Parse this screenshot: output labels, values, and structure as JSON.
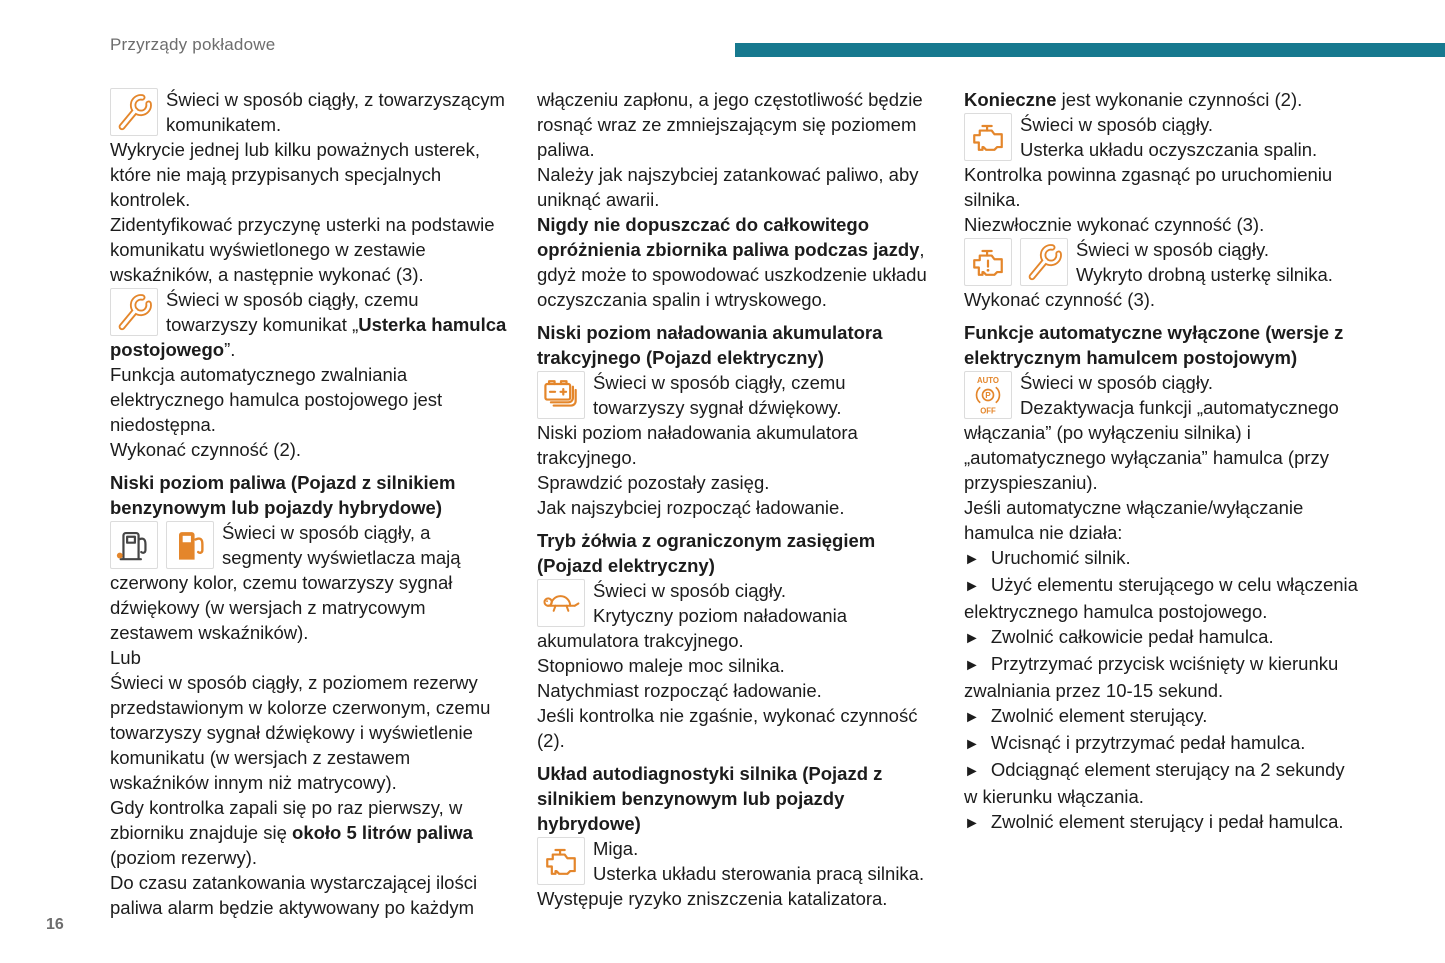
{
  "page": {
    "header": "Przyrządy pokładowe",
    "page_number": "16",
    "bullet_glyph": "►",
    "colors": {
      "accent_bar": "#17798f",
      "icon_orange": "#e4862b",
      "body_text": "#1c1c1c",
      "muted_gray": "#6d6d6d"
    }
  },
  "columns": [
    {
      "blocks": [
        {
          "type": "icon-para",
          "icons": [
            "wrench-icon"
          ],
          "runs": [
            {
              "t": "Świeci w sposób ciągły, z towarzyszącym komunikatem."
            }
          ]
        },
        {
          "type": "para",
          "runs": [
            {
              "t": "Wykrycie jednej lub kilku poważnych usterek, które nie mają przypisanych specjalnych kontrolek."
            }
          ]
        },
        {
          "type": "para",
          "runs": [
            {
              "t": "Zidentyfikować przyczynę usterki na podstawie komunikatu wyświetlonego w zestawie wskaźników, a następnie wykonać (3)."
            }
          ]
        },
        {
          "type": "icon-para",
          "icons": [
            "wrench-icon"
          ],
          "runs": [
            {
              "t": "Świeci w sposób ciągły, czemu towarzyszy komunikat „"
            },
            {
              "t": "Usterka hamulca postojowego",
              "b": true
            },
            {
              "t": "”."
            }
          ]
        },
        {
          "type": "para",
          "runs": [
            {
              "t": "Funkcja automatycznego zwalniania elektrycznego hamulca postojowego jest niedostępna."
            }
          ]
        },
        {
          "type": "para",
          "runs": [
            {
              "t": "Wykonać czynność (2)."
            }
          ]
        },
        {
          "type": "heading",
          "text": "Niski poziom paliwa (Pojazd z silnikiem benzynowym lub pojazdy hybrydowe)"
        },
        {
          "type": "icon-para",
          "icons": [
            "fuel-pump-reserve-icon",
            "fuel-pump-filled-icon"
          ],
          "runs": [
            {
              "t": "Świeci w sposób ciągły, a segmenty wyświetlacza mają czerwony kolor, czemu towarzyszy sygnał dźwiękowy (w wersjach z matrycowym zestawem wskaźników)."
            }
          ]
        },
        {
          "type": "para",
          "runs": [
            {
              "t": "Lub"
            }
          ]
        },
        {
          "type": "para",
          "runs": [
            {
              "t": "Świeci w sposób ciągły, z poziomem rezerwy przedstawionym w kolorze czerwonym, czemu towarzyszy sygnał dźwiękowy i wyświetlenie komunikatu (w wersjach z zestawem wskaźników innym niż matrycowy)."
            }
          ]
        },
        {
          "type": "para",
          "runs": [
            {
              "t": "Gdy kontrolka zapali się po raz pierwszy, w zbiorniku znajduje się "
            },
            {
              "t": "około 5 litrów paliwa",
              "b": true
            },
            {
              "t": " (poziom rezerwy)."
            }
          ]
        },
        {
          "type": "para",
          "runs": [
            {
              "t": "Do czasu zatankowania wystarczającej ilości paliwa alarm będzie aktywowany po każdym"
            }
          ]
        }
      ]
    },
    {
      "blocks": [
        {
          "type": "para",
          "runs": [
            {
              "t": "włączeniu zapłonu, a jego częstotliwość będzie rosnąć wraz ze zmniejszającym się poziomem paliwa."
            }
          ]
        },
        {
          "type": "para",
          "runs": [
            {
              "t": "Należy jak najszybciej zatankować paliwo, aby uniknąć awarii."
            }
          ]
        },
        {
          "type": "para",
          "runs": [
            {
              "t": "Nigdy nie dopuszczać do całkowitego opróżnienia zbiornika paliwa podczas jazdy",
              "b": true
            },
            {
              "t": ", gdyż może to spowodować uszkodzenie układu oczyszczania spalin i wtryskowego."
            }
          ]
        },
        {
          "type": "heading",
          "text": "Niski poziom naładowania akumulatora trakcyjnego (Pojazd elektryczny)"
        },
        {
          "type": "icon-para",
          "icons": [
            "traction-battery-icon"
          ],
          "runs": [
            {
              "t": "Świeci w sposób ciągły, czemu towarzyszy sygnał dźwiękowy."
            }
          ]
        },
        {
          "type": "para",
          "runs": [
            {
              "t": "Niski poziom naładowania akumulatora trakcyjnego."
            }
          ]
        },
        {
          "type": "para",
          "runs": [
            {
              "t": "Sprawdzić pozostały zasięg."
            }
          ]
        },
        {
          "type": "para",
          "runs": [
            {
              "t": "Jak najszybciej rozpocząć ładowanie."
            }
          ]
        },
        {
          "type": "heading",
          "text": "Tryb żółwia z ograniczonym zasięgiem (Pojazd elektryczny)"
        },
        {
          "type": "icon-para",
          "icons": [
            "turtle-icon"
          ],
          "runs": [
            {
              "t": "Świeci w sposób ciągły."
            },
            {
              "br": true
            },
            {
              "t": "Krytyczny poziom naładowania akumulatora trakcyjnego."
            }
          ]
        },
        {
          "type": "para",
          "runs": [
            {
              "t": "Stopniowo maleje moc silnika."
            }
          ]
        },
        {
          "type": "para",
          "runs": [
            {
              "t": "Natychmiast rozpocząć ładowanie."
            }
          ]
        },
        {
          "type": "para",
          "runs": [
            {
              "t": "Jeśli kontrolka nie zgaśnie, wykonać czynność (2)."
            }
          ]
        },
        {
          "type": "heading",
          "text": "Układ autodiagnostyki silnika (Pojazd z silnikiem benzynowym lub pojazdy hybrydowe)"
        },
        {
          "type": "icon-para",
          "icons": [
            "engine-icon"
          ],
          "runs": [
            {
              "t": "Miga."
            },
            {
              "br": true
            },
            {
              "t": "Usterka układu sterowania pracą silnika."
            }
          ]
        },
        {
          "type": "para",
          "runs": [
            {
              "t": "Występuje ryzyko zniszczenia katalizatora."
            }
          ]
        }
      ]
    },
    {
      "blocks": [
        {
          "type": "para",
          "runs": [
            {
              "t": "Konieczne",
              "b": true
            },
            {
              "t": " jest wykonanie czynności (2)."
            }
          ]
        },
        {
          "type": "icon-para",
          "icons": [
            "engine-icon"
          ],
          "runs": [
            {
              "t": "Świeci w sposób ciągły."
            },
            {
              "br": true
            },
            {
              "t": "Usterka układu oczyszczania spalin."
            }
          ]
        },
        {
          "type": "para",
          "runs": [
            {
              "t": "Kontrolka powinna zgasnąć po uruchomieniu silnika."
            }
          ]
        },
        {
          "type": "para",
          "runs": [
            {
              "t": "Niezwłocznie wykonać czynność (3)."
            }
          ]
        },
        {
          "type": "icon-para",
          "icons": [
            "engine-warning-icon",
            "wrench-icon"
          ],
          "runs": [
            {
              "t": "Świeci w sposób ciągły."
            },
            {
              "br": true
            },
            {
              "t": "Wykryto drobną usterkę silnika."
            }
          ]
        },
        {
          "type": "para",
          "runs": [
            {
              "t": "Wykonać czynność (3)."
            }
          ]
        },
        {
          "type": "heading",
          "text": "Funkcje automatyczne wyłączone (wersje z elektrycznym hamulcem postojowym)"
        },
        {
          "type": "icon-para",
          "icons": [
            "auto-brake-off-icon"
          ],
          "runs": [
            {
              "t": "Świeci w sposób ciągły."
            },
            {
              "br": true
            },
            {
              "t": "Dezaktywacja funkcji „automatycznego włączania” (po wyłączeniu silnika) i „automatycznego wyłączania” hamulca (przy przyspieszaniu)."
            }
          ]
        },
        {
          "type": "para",
          "runs": [
            {
              "t": "Jeśli automatyczne włączanie/wyłączanie hamulca nie działa:"
            }
          ]
        },
        {
          "type": "bullet",
          "runs": [
            {
              "t": "Uruchomić silnik."
            }
          ]
        },
        {
          "type": "bullet",
          "runs": [
            {
              "t": "Użyć elementu sterującego w celu włączenia elektrycznego hamulca postojowego."
            }
          ]
        },
        {
          "type": "bullet",
          "runs": [
            {
              "t": "Zwolnić całkowicie pedał hamulca."
            }
          ]
        },
        {
          "type": "bullet",
          "runs": [
            {
              "t": "Przytrzymać przycisk wciśnięty w kierunku zwalniania przez 10-15 sekund."
            }
          ]
        },
        {
          "type": "bullet",
          "runs": [
            {
              "t": "Zwolnić element sterujący."
            }
          ]
        },
        {
          "type": "bullet",
          "runs": [
            {
              "t": "Wcisnąć i przytrzymać pedał hamulca."
            }
          ]
        },
        {
          "type": "bullet",
          "runs": [
            {
              "t": "Odciągnąć element sterujący na 2 sekundy w kierunku włączania."
            }
          ]
        },
        {
          "type": "bullet",
          "runs": [
            {
              "t": "Zwolnić element sterujący i pedał hamulca."
            }
          ]
        }
      ]
    }
  ]
}
